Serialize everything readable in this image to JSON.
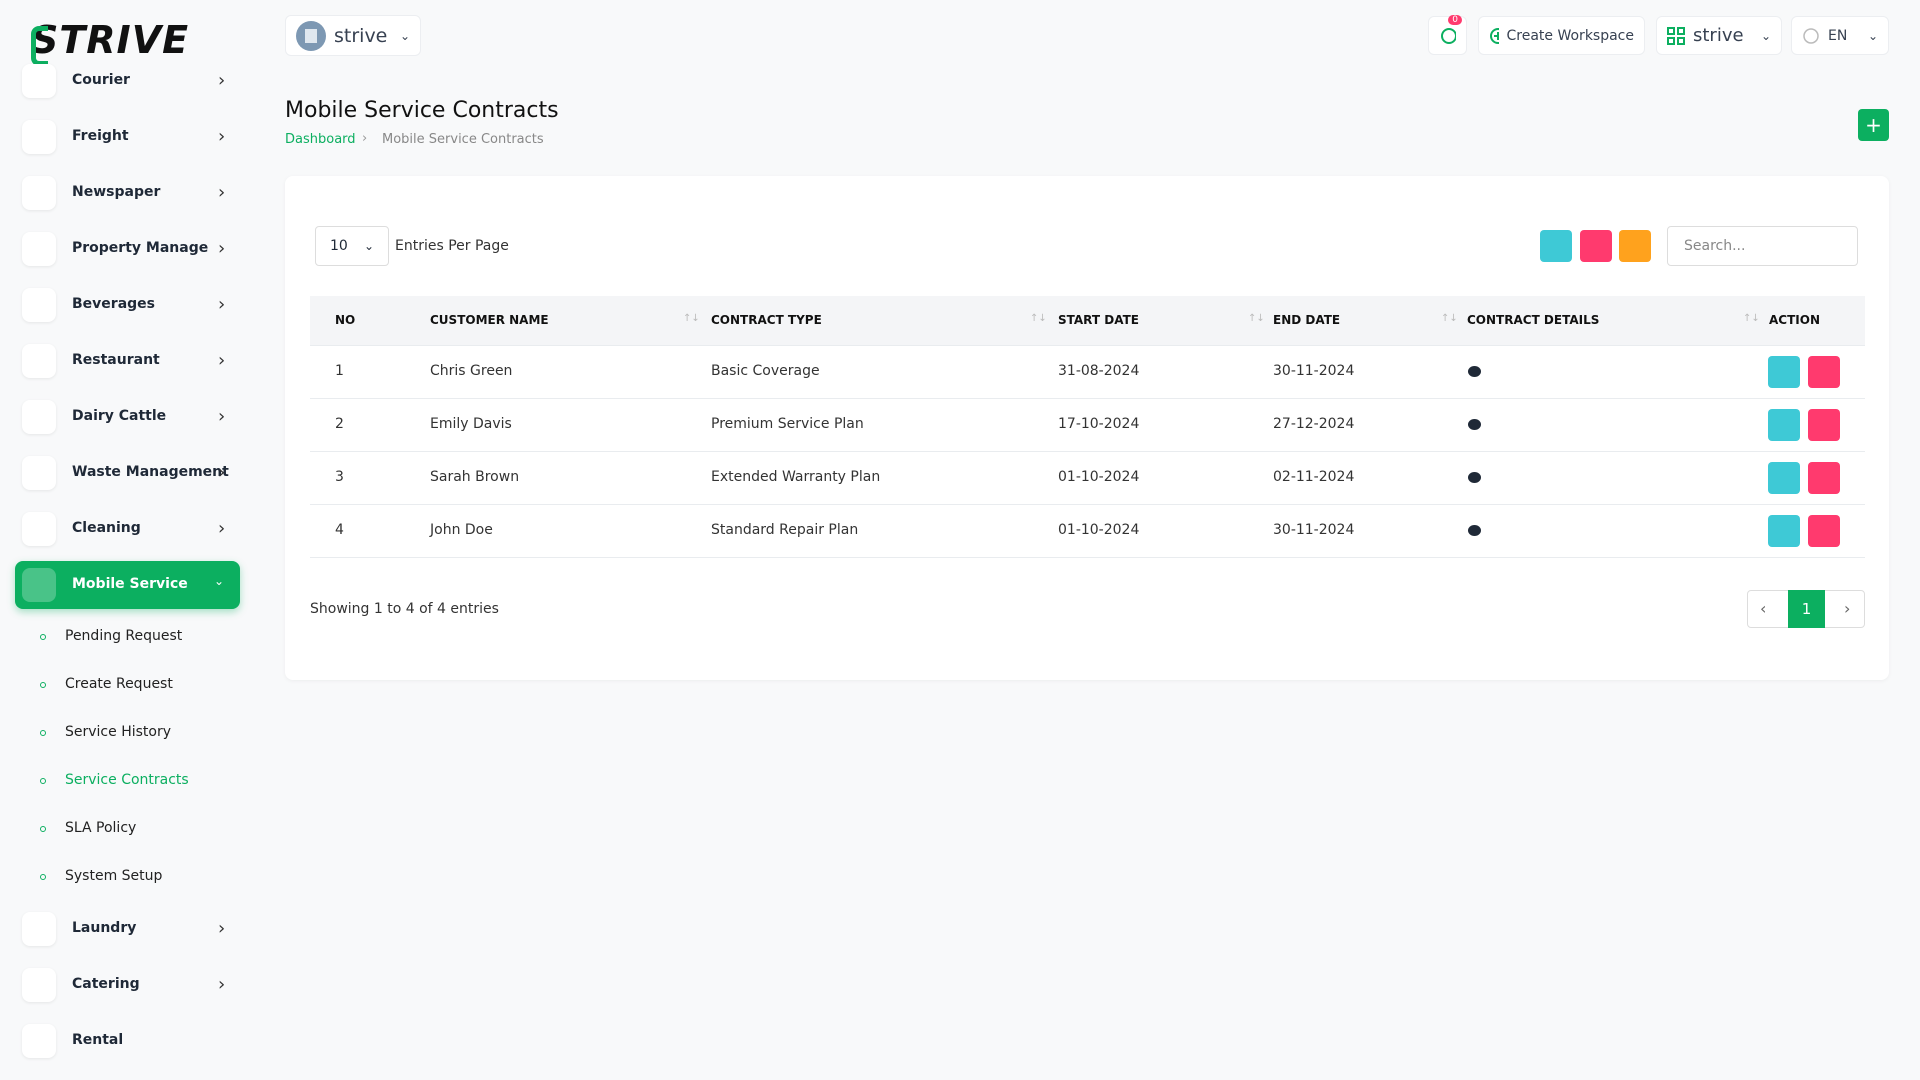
{
  "brand": "STRIVE",
  "header": {
    "workspace": "strive",
    "notifications": 0,
    "create_workspace": "Create Workspace",
    "user_workspace": "strive",
    "language": "EN"
  },
  "sidebar": {
    "menu": [
      "Courier",
      "Freight",
      "Newspaper",
      "Property Manage",
      "Beverages",
      "Restaurant",
      "Dairy Cattle",
      "Waste Management",
      "Cleaning"
    ],
    "active": "Mobile Service",
    "submenu": [
      "Pending Request",
      "Create Request",
      "Service History",
      "Service Contracts",
      "SLA Policy",
      "System Setup"
    ],
    "active_submenu": 3,
    "menu_after": [
      "Laundry",
      "Catering",
      "Rental"
    ]
  },
  "page": {
    "title": "Mobile Service Contracts",
    "breadcrumb": [
      "Dashboard",
      "Mobile Service Contracts"
    ]
  },
  "table": {
    "entries": 10,
    "entries_label": "Entries Per Page",
    "search_placeholder": "Search...",
    "columns": [
      "NO",
      "CUSTOMER NAME",
      "CONTRACT TYPE",
      "START DATE",
      "END DATE",
      "CONTRACT DETAILS",
      "ACTION"
    ],
    "rows": [
      [
        1,
        "Chris Green",
        "Basic Coverage",
        "31-08-2024",
        "30-11-2024"
      ],
      [
        2,
        "Emily Davis",
        "Premium Service Plan",
        "17-10-2024",
        "27-12-2024"
      ],
      [
        3,
        "Sarah Brown",
        "Extended Warranty Plan",
        "01-10-2024",
        "02-11-2024"
      ],
      [
        4,
        "John Doe",
        "Standard Repair Plan",
        "01-10-2024",
        "30-11-2024"
      ]
    ],
    "summary": "Showing 1 to 4 of 4 entries",
    "current_page": 1
  }
}
